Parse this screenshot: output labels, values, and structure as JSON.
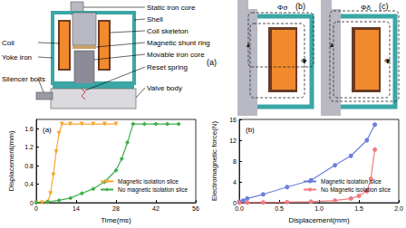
{
  "diagram": {
    "a": {
      "panel": "(a)",
      "right_labels": [
        "Static iron core",
        "Shell",
        "Coil skeleton",
        "Magnetic shunt ring",
        "Movable iron core",
        "Reset spring",
        "Valve body"
      ],
      "left_labels": [
        "Coil",
        "Yoke iron",
        "Silencer bolts"
      ]
    },
    "b": {
      "panel": "(b)",
      "flux": [
        "Φσ",
        "Φ"
      ]
    },
    "c": {
      "panel": "(c)",
      "flux": [
        "Φδ",
        "Φ"
      ]
    }
  },
  "chart_data": [
    {
      "type": "line",
      "title": "(a)",
      "x_label": "Time(ms)",
      "y_label": "Displacement(mm)",
      "xlim": [
        0,
        56
      ],
      "xticks": [
        0,
        14,
        28,
        42,
        56
      ],
      "ylim": [
        0,
        1.8
      ],
      "yticks": [
        0,
        0.4,
        0.8,
        1.2,
        1.6
      ],
      "grid": false,
      "legend": "lower right",
      "series": [
        {
          "name": "Magnetic isolation slice",
          "color": "#f7a531",
          "marker": "triangle-down",
          "x": [
            0,
            2,
            4,
            5,
            6,
            7,
            8,
            9,
            12,
            16,
            20,
            24,
            28
          ],
          "values": [
            0,
            0,
            0,
            0.2,
            0.6,
            1.1,
            1.5,
            1.7,
            1.7,
            1.7,
            1.7,
            1.7,
            1.7
          ]
        },
        {
          "name": "No magnetic isolation slice",
          "color": "#3cae4b",
          "marker": "diamond",
          "x": [
            0,
            4,
            8,
            12,
            16,
            20,
            24,
            28,
            30,
            32,
            34,
            38,
            42,
            46,
            50
          ],
          "values": [
            0,
            0.02,
            0.05,
            0.1,
            0.2,
            0.3,
            0.45,
            0.7,
            0.95,
            1.3,
            1.7,
            1.7,
            1.7,
            1.7,
            1.7
          ]
        }
      ]
    },
    {
      "type": "line",
      "title": "(b)",
      "x_label": "Displacement(mm)",
      "y_label": "Electromagnetic force(N)",
      "xlim": [
        0,
        2
      ],
      "xticks": [
        {
          "value": 0,
          "label": "0.0"
        },
        {
          "value": 0.5,
          "label": "0.5"
        },
        {
          "value": 1,
          "label": "1.0"
        },
        {
          "value": 1.5,
          "label": "1.5"
        },
        {
          "value": 2,
          "label": "2.0"
        }
      ],
      "ylim": [
        0,
        16
      ],
      "yticks": [
        0,
        4,
        8,
        12,
        16
      ],
      "grid": false,
      "legend": "lower right",
      "series": [
        {
          "name": "Magnetic isolation slice",
          "color": "#6b80dc",
          "marker": "circle",
          "x": [
            0,
            0.05,
            0.1,
            0.3,
            0.6,
            0.9,
            1.2,
            1.4,
            1.6,
            1.7
          ],
          "values": [
            0.2,
            0.4,
            0.8,
            1.6,
            3.0,
            4.3,
            7.2,
            9.0,
            12.0,
            15.0
          ]
        },
        {
          "name": "No Magnetic isolation slice",
          "color": "#f07c82",
          "marker": "circle",
          "x": [
            0,
            0.1,
            0.3,
            0.6,
            0.9,
            1.2,
            1.4,
            1.5,
            1.6,
            1.65,
            1.7
          ],
          "values": [
            0,
            0.02,
            0.05,
            0.1,
            0.2,
            0.4,
            0.8,
            1.3,
            2.2,
            4.6,
            10.2
          ]
        }
      ]
    }
  ]
}
